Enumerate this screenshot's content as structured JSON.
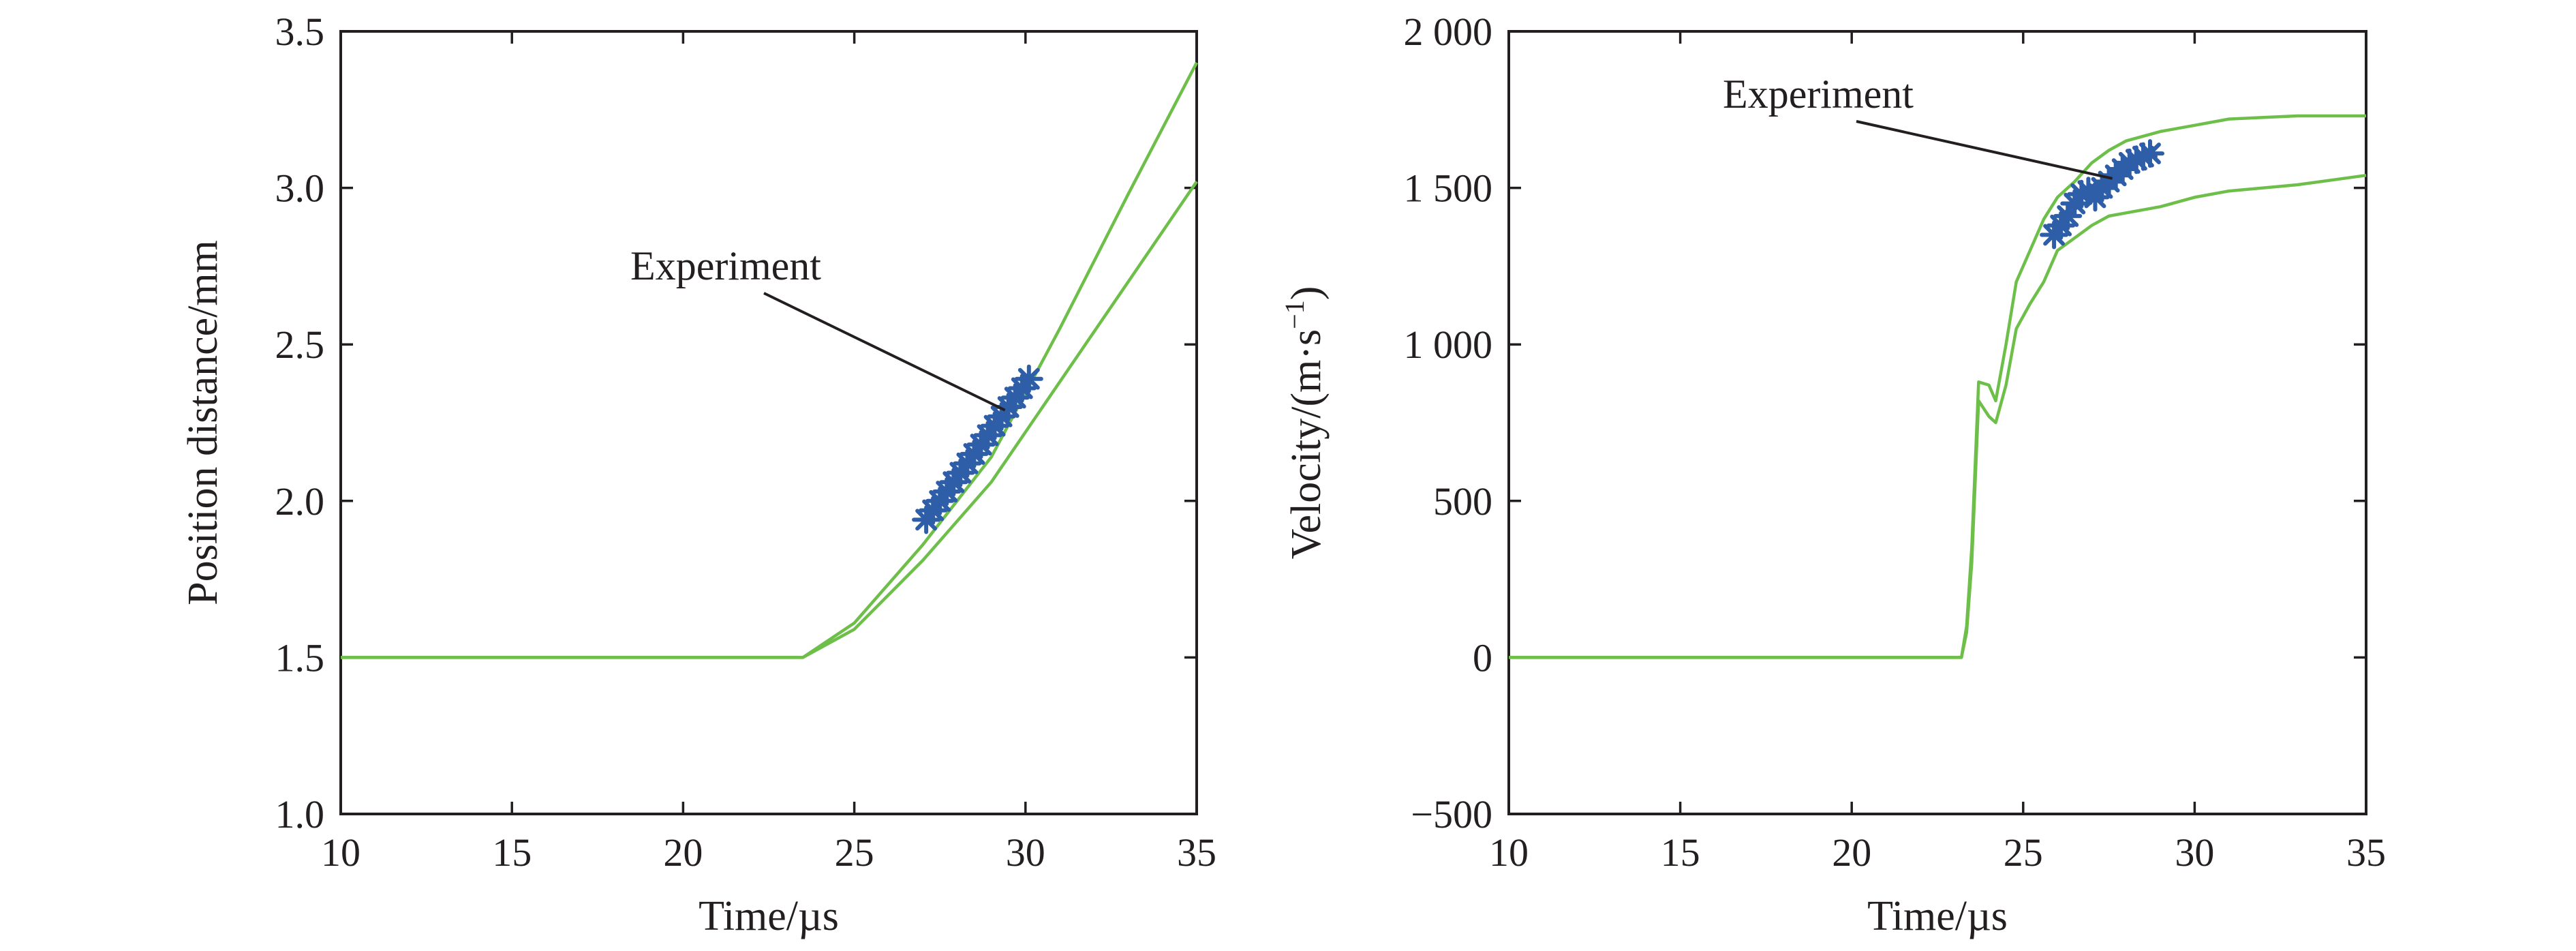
{
  "colors": {
    "simulation": "#6dbf4a",
    "experiment": "#2f5ea8",
    "axis": "#231f20"
  },
  "chart_data": [
    {
      "type": "line",
      "xlabel": "Time/µs",
      "ylabel": "Position distance/mm",
      "xlim": [
        10,
        35
      ],
      "ylim": [
        1.0,
        3.5
      ],
      "xticks": [
        "10",
        "15",
        "20",
        "25",
        "30",
        "35"
      ],
      "yticks": [
        "1.0",
        "1.5",
        "2.0",
        "2.5",
        "3.0",
        "3.5"
      ],
      "grid": false,
      "annotation": {
        "text": "Experiment",
        "target": [
          29.4,
          2.29
        ]
      },
      "series": [
        {
          "role": "upper-bound",
          "style": "line",
          "color": "#6dbf4a",
          "x": [
            10,
            23.5,
            25,
            27,
            29,
            31,
            33,
            35
          ],
          "y": [
            1.5,
            1.5,
            1.61,
            1.86,
            2.14,
            2.55,
            2.98,
            3.4
          ]
        },
        {
          "role": "lower-bound",
          "style": "line",
          "color": "#6dbf4a",
          "x": [
            10,
            23.5,
            25,
            27,
            29,
            31,
            33,
            35
          ],
          "y": [
            1.5,
            1.5,
            1.59,
            1.81,
            2.06,
            2.38,
            2.7,
            3.02
          ]
        },
        {
          "name": "Experiment",
          "style": "markers",
          "marker": "asterisk",
          "color": "#2f5ea8",
          "x": [
            27.1,
            27.3,
            27.5,
            27.7,
            27.9,
            28.1,
            28.3,
            28.5,
            28.7,
            28.9,
            29.1,
            29.3,
            29.5,
            29.7,
            29.9,
            30.1
          ],
          "y": [
            1.94,
            1.97,
            2.0,
            2.03,
            2.06,
            2.09,
            2.12,
            2.15,
            2.18,
            2.21,
            2.24,
            2.27,
            2.3,
            2.33,
            2.36,
            2.39
          ]
        }
      ]
    },
    {
      "type": "line",
      "xlabel": "Time/µs",
      "ylabel": "Velocity/(m·s",
      "ylabel_sup": "−1",
      "ylabel_close": ")",
      "xlim": [
        10,
        35
      ],
      "ylim": [
        -500,
        2000
      ],
      "xticks": [
        "10",
        "15",
        "20",
        "25",
        "30",
        "35"
      ],
      "yticks": [
        "−500",
        "0",
        "500",
        "1 000",
        "1 500",
        "2 000"
      ],
      "grid": false,
      "annotation": {
        "text": "Experiment",
        "target": [
          27.6,
          1530
        ]
      },
      "series": [
        {
          "role": "upper-bound",
          "style": "line",
          "color": "#6dbf4a",
          "x": [
            10,
            23.2,
            23.35,
            23.5,
            23.7,
            24.0,
            24.2,
            24.5,
            24.8,
            25.2,
            25.6,
            26.0,
            26.5,
            27.0,
            27.5,
            28.0,
            29.0,
            30.0,
            31.0,
            33.0,
            35.0
          ],
          "y": [
            0,
            0,
            100,
            350,
            880,
            870,
            820,
            1000,
            1200,
            1300,
            1400,
            1470,
            1520,
            1580,
            1620,
            1650,
            1680,
            1700,
            1720,
            1730,
            1730
          ]
        },
        {
          "role": "lower-bound",
          "style": "line",
          "color": "#6dbf4a",
          "x": [
            10,
            23.2,
            23.35,
            23.5,
            23.7,
            24.0,
            24.2,
            24.5,
            24.8,
            25.2,
            25.6,
            26.0,
            26.5,
            27.0,
            27.5,
            28.0,
            29.0,
            30.0,
            31.0,
            33.0,
            35.0
          ],
          "y": [
            0,
            0,
            80,
            300,
            820,
            770,
            750,
            870,
            1050,
            1130,
            1200,
            1300,
            1340,
            1380,
            1410,
            1420,
            1440,
            1470,
            1490,
            1510,
            1540
          ]
        },
        {
          "name": "Experiment",
          "style": "markers",
          "marker": "asterisk",
          "color": "#2f5ea8",
          "x": [
            25.9,
            26.1,
            26.3,
            26.5,
            26.7,
            26.9,
            27.1,
            27.3,
            27.5,
            27.7,
            27.9,
            28.1,
            28.3,
            28.5,
            28.7
          ],
          "y": [
            1350,
            1380,
            1410,
            1450,
            1480,
            1490,
            1470,
            1500,
            1520,
            1540,
            1560,
            1580,
            1590,
            1600,
            1610
          ]
        }
      ]
    }
  ]
}
